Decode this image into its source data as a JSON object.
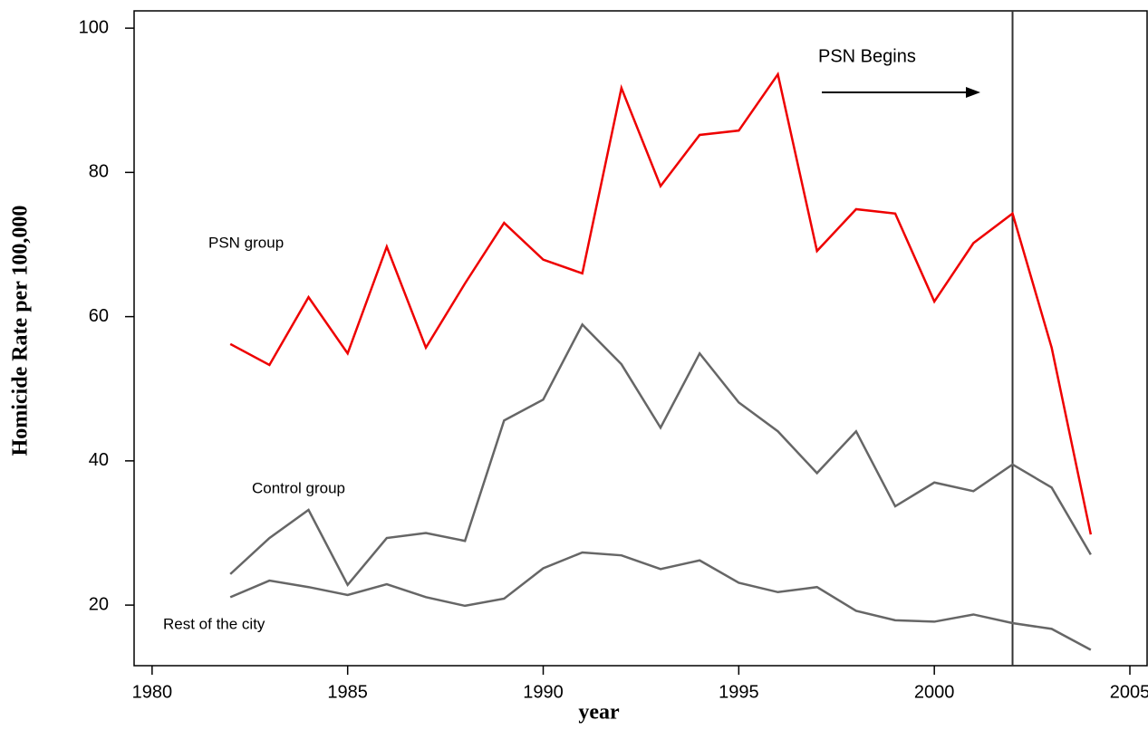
{
  "chart_data": {
    "type": "line",
    "xlabel": "year",
    "ylabel": "Homicide Rate per 100,000",
    "x": [
      1982,
      1983,
      1984,
      1985,
      1986,
      1987,
      1988,
      1989,
      1990,
      1991,
      1992,
      1993,
      1994,
      1995,
      1996,
      1997,
      1998,
      1999,
      2000,
      2001,
      2002,
      2003,
      2004
    ],
    "series": [
      {
        "name": "PSN group",
        "color": "#ee0000",
        "values": [
          56.2,
          53.3,
          62.7,
          54.9,
          69.7,
          55.7,
          64.6,
          73.0,
          67.9,
          66.0,
          91.7,
          78.1,
          85.2,
          85.8,
          93.6,
          69.1,
          74.9,
          74.3,
          62.1,
          70.2,
          74.3,
          55.7,
          29.8
        ]
      },
      {
        "name": "Control group",
        "color": "#666666",
        "values": [
          24.3,
          29.3,
          33.2,
          22.8,
          29.3,
          30.0,
          28.9,
          45.6,
          48.5,
          58.9,
          53.4,
          44.6,
          54.9,
          48.1,
          44.1,
          38.3,
          44.1,
          33.7,
          37.0,
          35.8,
          39.5,
          36.3,
          27.0
        ]
      },
      {
        "name": "Rest of the city",
        "color": "#666666",
        "values": [
          21.1,
          23.4,
          22.5,
          21.4,
          22.9,
          21.1,
          19.9,
          20.9,
          25.1,
          27.3,
          26.9,
          25.0,
          26.2,
          23.1,
          21.8,
          22.5,
          19.2,
          17.9,
          17.7,
          18.7,
          17.5,
          16.7,
          13.8
        ]
      }
    ],
    "annotation": "PSN Begins",
    "vline": 2002,
    "xlim": [
      1979.54,
      2005.44
    ],
    "xticks": [
      1980,
      1985,
      1990,
      1995,
      2000,
      2005
    ],
    "ylim": [
      11.6,
      102.4
    ],
    "yticks": [
      20,
      40,
      60,
      80,
      100
    ]
  }
}
